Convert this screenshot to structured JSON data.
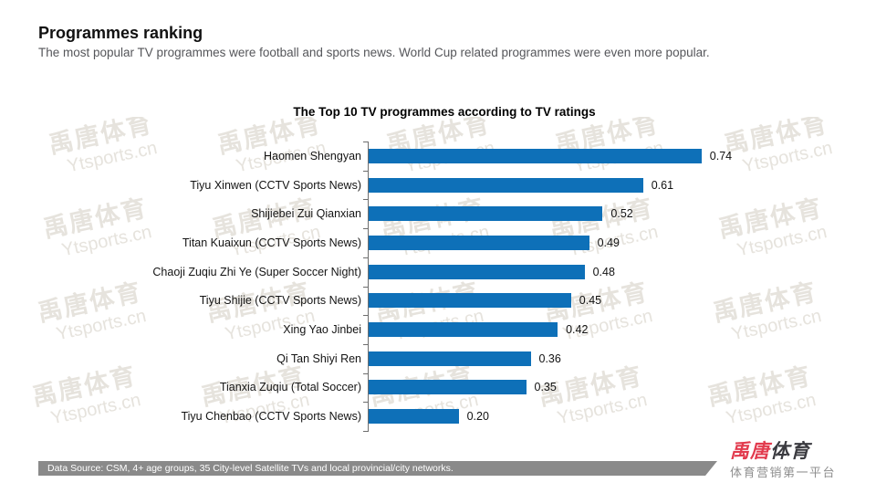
{
  "page": {
    "title": "Programmes ranking",
    "subtitle": "The most popular TV programmes were football and sports news. World Cup related programmes were even more popular."
  },
  "chart_data": {
    "type": "bar",
    "orientation": "horizontal",
    "title": "The Top 10 TV programmes according to TV ratings",
    "categories": [
      "Haomen Shengyan",
      "Tiyu Xinwen (CCTV Sports News)",
      "Shijiebei Zui Qianxian",
      "Titan Kuaixun (CCTV Sports News)",
      "Chaoji Zuqiu Zhi Ye (Super Soccer Night)",
      "Tiyu Shijie (CCTV Sports News)",
      "Xing Yao Jinbei",
      "Qi Tan Shiyi Ren",
      "Tianxia Zuqiu (Total Soccer)",
      "Tiyu Chenbao (CCTV Sports News)"
    ],
    "values": [
      0.74,
      0.61,
      0.52,
      0.49,
      0.48,
      0.45,
      0.42,
      0.36,
      0.35,
      0.2
    ],
    "value_labels": [
      "0.74",
      "0.61",
      "0.52",
      "0.49",
      "0.48",
      "0.45",
      "0.42",
      "0.36",
      "0.35",
      "0.20"
    ],
    "xlabel": "",
    "ylabel": "",
    "xlim": [
      0,
      0.8
    ],
    "grid": false,
    "legend": false,
    "bar_color": "#0e70b8",
    "axis_color": "#6e6e6e",
    "bar_label_position": "end-of-bar"
  },
  "watermark": {
    "line1": "禹唐体育",
    "line2": "Ytsports.cn",
    "color": "#e6e3dd"
  },
  "footer": {
    "source_text": "Data Source: CSM, 4+ age groups, 35 City-level Satellite TVs and local provincial/city networks.",
    "bar_color": "#8a8a8a"
  },
  "logo": {
    "brand_red": "禹唐",
    "brand_dark": "体育",
    "tagline": "体育营销第一平台",
    "accent_color": "#e23b4e"
  }
}
